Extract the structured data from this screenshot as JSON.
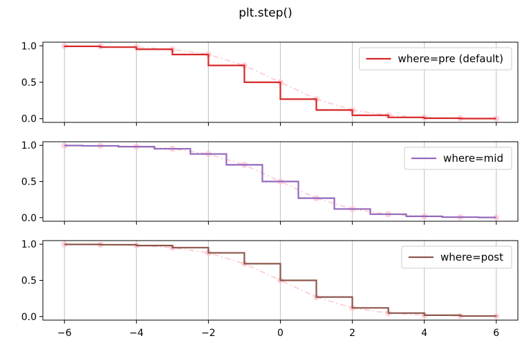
{
  "chart_data": {
    "type": "line",
    "title": "plt.step()",
    "x": [
      -6,
      -5,
      -4,
      -3,
      -2,
      -1,
      0,
      1,
      2,
      3,
      4,
      5,
      6
    ],
    "y": [
      0.9975,
      0.9933,
      0.982,
      0.9526,
      0.8808,
      0.7311,
      0.5,
      0.2689,
      0.1192,
      0.0474,
      0.018,
      0.0067,
      0.0025
    ],
    "xlim": [
      -6.6,
      6.6
    ],
    "ylim": [
      -0.05,
      1.05
    ],
    "xticks": [
      -6,
      -4,
      -2,
      0,
      2,
      4,
      6
    ],
    "xtick_labels": [
      "−6",
      "−4",
      "−2",
      "0",
      "2",
      "4",
      "6"
    ],
    "yticks": [
      0,
      0.5,
      1
    ],
    "ytick_labels": [
      "0.0",
      "0.5",
      "1.0"
    ],
    "grid": "x",
    "reference_line": {
      "color": "#ffc0cb",
      "style": "dash-dot with circle markers"
    },
    "panels": [
      {
        "where": "pre",
        "label": "where=pre (default)",
        "color": "#d62728",
        "legend": "upper right"
      },
      {
        "where": "mid",
        "label": "where=mid",
        "color": "#9467bd",
        "legend": "upper right"
      },
      {
        "where": "post",
        "label": "where=post",
        "color": "#8c564b",
        "legend": "upper right"
      }
    ]
  }
}
